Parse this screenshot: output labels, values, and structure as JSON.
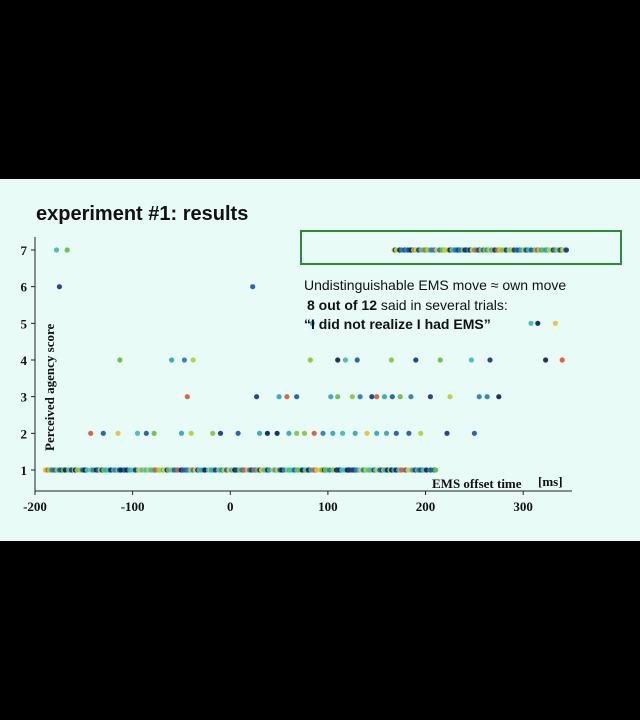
{
  "slide": {
    "title": "experiment #1: results",
    "annotation": {
      "line1": "Undistinguishable EMS move ≈ own move",
      "line2_bold": "8 out of 12",
      "line2_rest": " said in several trials:",
      "line3": "“I did not realize I had EMS”"
    },
    "highlight_color": "#2e8b3a"
  },
  "chart_data": {
    "type": "scatter",
    "xlabel": "EMS offset time",
    "xunit": "[ms]",
    "ylabel": "Perceived agency score",
    "xlim": [
      -200,
      350
    ],
    "ylim": [
      0.7,
      7.3
    ],
    "xticks": [
      -200,
      -100,
      0,
      100,
      200,
      300
    ],
    "yticks": [
      1,
      2,
      3,
      4,
      5,
      6,
      7
    ],
    "palette": [
      "#0d2b5c",
      "#16408a",
      "#1f5fae",
      "#2a7fb8",
      "#36a9b8",
      "#3ec1b0",
      "#6abf47",
      "#8cc63f",
      "#b6d334",
      "#e8c23a",
      "#e05a3a"
    ],
    "points": [
      [
        -178,
        7
      ],
      [
        -167,
        7
      ],
      [
        -175,
        6
      ],
      [
        23,
        6
      ],
      [
        84,
        5
      ],
      [
        308,
        5
      ],
      [
        315,
        5
      ],
      [
        333,
        5
      ],
      [
        -113,
        4
      ],
      [
        -60,
        4
      ],
      [
        -47,
        4
      ],
      [
        -38,
        4
      ],
      [
        82,
        4
      ],
      [
        110,
        4
      ],
      [
        118,
        4
      ],
      [
        130,
        4
      ],
      [
        165,
        4
      ],
      [
        190,
        4
      ],
      [
        215,
        4
      ],
      [
        247,
        4
      ],
      [
        266,
        4
      ],
      [
        323,
        4
      ],
      [
        340,
        4
      ],
      [
        -44,
        3
      ],
      [
        27,
        3
      ],
      [
        50,
        3
      ],
      [
        58,
        3
      ],
      [
        68,
        3
      ],
      [
        103,
        3
      ],
      [
        110,
        3
      ],
      [
        125,
        3
      ],
      [
        133,
        3
      ],
      [
        145,
        3
      ],
      [
        150,
        3
      ],
      [
        158,
        3
      ],
      [
        166,
        3
      ],
      [
        174,
        3
      ],
      [
        185,
        3
      ],
      [
        205,
        3
      ],
      [
        225,
        3
      ],
      [
        255,
        3
      ],
      [
        263,
        3
      ],
      [
        275,
        3
      ],
      [
        -143,
        2
      ],
      [
        -130,
        2
      ],
      [
        -115,
        2
      ],
      [
        -95,
        2
      ],
      [
        -86,
        2
      ],
      [
        -78,
        2
      ],
      [
        -50,
        2
      ],
      [
        -40,
        2
      ],
      [
        -18,
        2
      ],
      [
        -10,
        2
      ],
      [
        8,
        2
      ],
      [
        30,
        2
      ],
      [
        38,
        2
      ],
      [
        48,
        2
      ],
      [
        60,
        2
      ],
      [
        68,
        2
      ],
      [
        76,
        2
      ],
      [
        86,
        2
      ],
      [
        95,
        2
      ],
      [
        105,
        2
      ],
      [
        115,
        2
      ],
      [
        128,
        2
      ],
      [
        140,
        2
      ],
      [
        150,
        2
      ],
      [
        160,
        2
      ],
      [
        170,
        2
      ],
      [
        183,
        2
      ],
      [
        195,
        2
      ],
      [
        222,
        2
      ],
      [
        250,
        2
      ]
    ],
    "dense_bands": [
      {
        "y": 1,
        "x_range": [
          -190,
          210
        ],
        "count": 190
      },
      {
        "y": 7,
        "x_range": [
          168,
          345
        ],
        "count": 110
      }
    ]
  }
}
